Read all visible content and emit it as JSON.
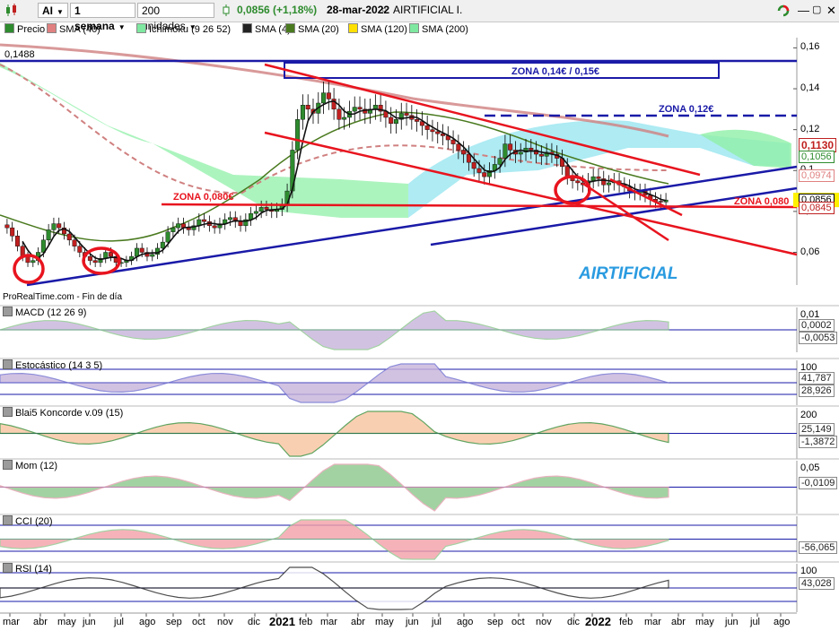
{
  "toolbar": {
    "symbol": "AI",
    "period": "1 semana",
    "units": "200 unidades",
    "change": "0,0856 (+1,18%)",
    "date": "28-mar-2022",
    "name": "AIRTIFICIAL I."
  },
  "legend": [
    {
      "label": "Precio",
      "color": "#2e8b2e"
    },
    {
      "label": "SMA (40)",
      "color": "#e08080"
    },
    {
      "label": "Ichimoku (9 26 52)",
      "color": "#7fe8a0"
    },
    {
      "label": "SMA (4)",
      "color": "#222222"
    },
    {
      "label": "SMA (20)",
      "color": "#4a7a1f"
    },
    {
      "label": "SMA (120)",
      "color": "#ffe000"
    },
    {
      "label": "SMA (200)",
      "color": "#7fe8a0"
    }
  ],
  "colors": {
    "up": "#2e8b2e",
    "down": "#c02020",
    "trend_red": "#e8141e",
    "trend_blue": "#1a1aa8",
    "cloud": "#90f0a8",
    "cloud2": "#9ae6f0"
  },
  "chart_data": {
    "type": "candlestick",
    "source_note": "ProRealTime.com - Fin de día",
    "watermark": "AIRTIFICIAL",
    "yaxis_ticks": [
      "0,16",
      "0,14",
      "0,12",
      "0,1",
      "0,08",
      "0,06"
    ],
    "ylim": [
      0.044,
      0.165
    ],
    "x_labels": [
      "mar",
      "abr",
      "may",
      "jun",
      "jul",
      "ago",
      "sep",
      "oct",
      "nov",
      "dic",
      "2021",
      "feb",
      "mar",
      "abr",
      "may",
      "jun",
      "jul",
      "ago",
      "sep",
      "oct",
      "nov",
      "dic",
      "2022",
      "feb",
      "mar",
      "abr",
      "may",
      "jun",
      "jul",
      "ago"
    ],
    "last_price": "0,0856",
    "top_left_label": "0,1488",
    "price_badges": [
      {
        "text": "0,1130",
        "color": "#c02020"
      },
      {
        "text": "0,1056",
        "color": "#2e8b2e"
      },
      {
        "text": "0,0974",
        "color": "#e08080"
      },
      {
        "text": "0,0856",
        "color": "#000000"
      },
      {
        "text": "0,0845",
        "color": "#c02020"
      }
    ],
    "annotations": [
      {
        "text": "ZONA 0,14€ / 0,15€",
        "color": "#1a1aa8"
      },
      {
        "text": "ZONA 0,12€",
        "color": "#1a1aa8"
      },
      {
        "text": "ZONA 0,080€",
        "color": "#e8141e"
      },
      {
        "text": "ZONA 0,080",
        "color": "#e8141e"
      }
    ],
    "close": [
      0.072,
      0.068,
      0.063,
      0.058,
      0.055,
      0.056,
      0.06,
      0.066,
      0.071,
      0.074,
      0.072,
      0.069,
      0.066,
      0.063,
      0.06,
      0.058,
      0.056,
      0.055,
      0.057,
      0.06,
      0.058,
      0.055,
      0.055,
      0.056,
      0.058,
      0.062,
      0.06,
      0.058,
      0.059,
      0.062,
      0.065,
      0.07,
      0.072,
      0.074,
      0.072,
      0.071,
      0.073,
      0.076,
      0.075,
      0.073,
      0.072,
      0.074,
      0.076,
      0.077,
      0.075,
      0.073,
      0.076,
      0.079,
      0.08,
      0.082,
      0.081,
      0.08,
      0.081,
      0.083,
      0.09,
      0.11,
      0.125,
      0.132,
      0.13,
      0.128,
      0.133,
      0.138,
      0.135,
      0.13,
      0.125,
      0.126,
      0.129,
      0.131,
      0.13,
      0.128,
      0.13,
      0.132,
      0.129,
      0.126,
      0.123,
      0.125,
      0.128,
      0.127,
      0.125,
      0.124,
      0.122,
      0.12,
      0.119,
      0.118,
      0.117,
      0.115,
      0.113,
      0.11,
      0.108,
      0.104,
      0.101,
      0.099,
      0.097,
      0.1,
      0.103,
      0.106,
      0.113,
      0.11,
      0.108,
      0.109,
      0.111,
      0.11,
      0.108,
      0.107,
      0.109,
      0.108,
      0.106,
      0.102,
      0.097,
      0.095,
      0.094,
      0.093,
      0.095,
      0.097,
      0.096,
      0.093,
      0.094,
      0.095,
      0.093,
      0.092,
      0.09,
      0.089,
      0.09,
      0.088,
      0.086,
      0.085,
      0.0846,
      0.0856
    ],
    "series_badges": [
      {
        "panel": "MACD (12 26 9)",
        "ticks": [
          "0,01"
        ],
        "values": [
          "0,0002",
          "-0,0053"
        ]
      },
      {
        "panel": "Estocástico (14 3 5)",
        "ticks": [
          "100"
        ],
        "values": [
          "41,787",
          "28,926"
        ]
      },
      {
        "panel": "Blai5 Koncorde v.09 (15)",
        "ticks": [
          "200"
        ],
        "values": [
          "25,149",
          "-1,3872"
        ]
      },
      {
        "panel": "Mom (12)",
        "ticks": [
          "0,05"
        ],
        "values": [
          "-0,0109"
        ]
      },
      {
        "panel": "CCI (20)",
        "ticks": [],
        "values": [
          "-56,065"
        ]
      },
      {
        "panel": "RSI (14)",
        "ticks": [
          "100"
        ],
        "values": [
          "43,028"
        ]
      }
    ]
  }
}
